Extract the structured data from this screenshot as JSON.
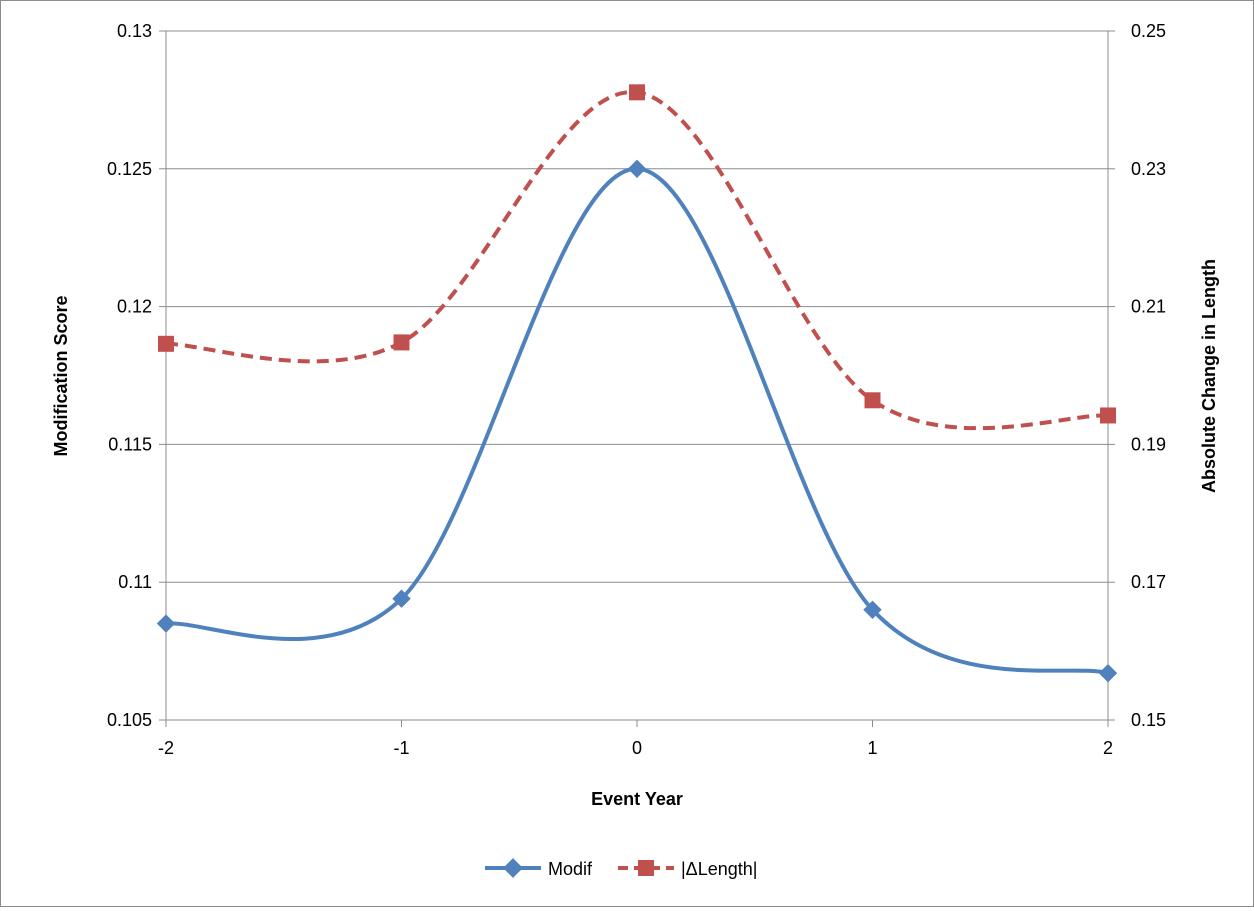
{
  "chart_data": {
    "type": "line",
    "smooth": true,
    "title": "",
    "xlabel": "Event Year",
    "ylabel": "Modification Score",
    "y2label": "Absolute Change in Length",
    "x": [
      -2,
      -1,
      0,
      1,
      2
    ],
    "x_ticks": [
      "-2",
      "-1",
      "0",
      "1",
      "2"
    ],
    "ylim": [
      0.105,
      0.13
    ],
    "y_ticks": [
      "0.105",
      "0.11",
      "0.115",
      "0.12",
      "0.125",
      "0.13"
    ],
    "y_tick_values": [
      0.105,
      0.11,
      0.115,
      0.12,
      0.125,
      0.13
    ],
    "y2lim": [
      0.15,
      0.25
    ],
    "y2_ticks": [
      "0.15",
      "0.17",
      "0.19",
      "0.21",
      "0.23",
      "0.25"
    ],
    "y2_tick_values": [
      0.15,
      0.17,
      0.19,
      0.21,
      0.23,
      0.25
    ],
    "grid": true,
    "legend_position": "bottom",
    "series": [
      {
        "name": "Modif",
        "axis": "left",
        "values": [
          0.1085,
          0.1094,
          0.125,
          0.109,
          0.1067
        ],
        "color": "#4f81bd",
        "marker": "diamond",
        "dash": "solid"
      },
      {
        "name": "|ΔLength|",
        "axis": "right",
        "values": [
          0.2046,
          0.2048,
          0.2411,
          0.1964,
          0.1942
        ],
        "color": "#c0504d",
        "marker": "square",
        "dash": "dashed"
      }
    ]
  }
}
